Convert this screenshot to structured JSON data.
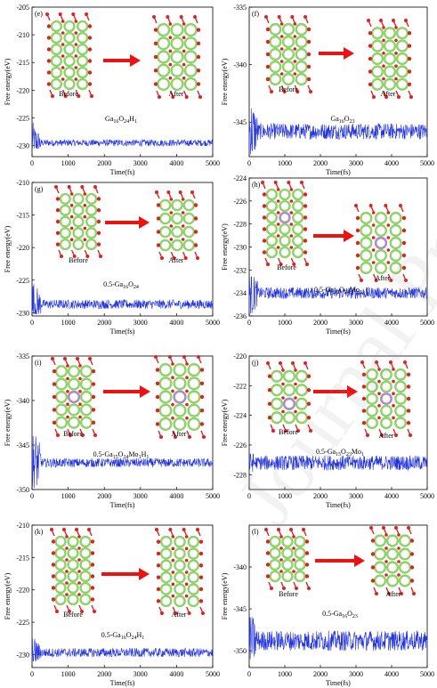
{
  "figure": {
    "watermark": "Journal Pre-proof"
  },
  "chart_data": [
    {
      "type": "line",
      "panel": "(e)",
      "series_label": "Ga16O24H1",
      "title_parts": [
        [
          "Ga",
          ""
        ],
        [
          "16",
          "sub"
        ],
        [
          "O",
          ""
        ],
        [
          "24",
          "sub"
        ],
        [
          "H",
          ""
        ],
        [
          "1",
          "sub"
        ]
      ],
      "ylabel": "Free energy(eV)",
      "xlabel": "Time(fs)",
      "xlim": [
        0,
        5000
      ],
      "ylim": [
        -232,
        -205
      ],
      "yticks": [
        -205,
        -210,
        -215,
        -220,
        -225,
        -230
      ],
      "xticks": [
        0,
        1000,
        2000,
        3000,
        4000,
        5000
      ],
      "baseline": -229.5,
      "amplitude": 0.6,
      "initial_min": -230.5,
      "initial_max": -225.5,
      "before_label": "Before",
      "after_label": "After"
    },
    {
      "type": "line",
      "panel": "(f)",
      "series_label": "Ga16O23",
      "title_parts": [
        [
          "Ga",
          ""
        ],
        [
          "16",
          "sub"
        ],
        [
          "O",
          ""
        ],
        [
          "23",
          "sub"
        ]
      ],
      "ylabel": "Free energy(eV)",
      "xlabel": "Time(fs)",
      "xlim": [
        0,
        5000
      ],
      "ylim": [
        -348,
        -335
      ],
      "yticks": [
        -335,
        -340,
        -345
      ],
      "xticks": [
        0,
        1000,
        2000,
        3000,
        4000,
        5000
      ],
      "baseline": -345.8,
      "amplitude": 0.7,
      "initial_min": -347.8,
      "initial_max": -343.5,
      "before_label": "Before",
      "after_label": "After"
    },
    {
      "type": "line",
      "panel": "(g)",
      "series_label": "0.5-Ga16O24",
      "title_parts": [
        [
          "0.5-Ga",
          ""
        ],
        [
          "16",
          "sub"
        ],
        [
          "O",
          ""
        ],
        [
          "24",
          "sub"
        ]
      ],
      "ylabel": "Free energy(eV)",
      "xlabel": "Time(fs)",
      "xlim": [
        0,
        5000
      ],
      "ylim": [
        -230.5,
        -210
      ],
      "yticks": [
        -210,
        -215,
        -220,
        -225,
        -230
      ],
      "xticks": [
        0,
        1000,
        2000,
        3000,
        4000,
        5000
      ],
      "baseline": -228.7,
      "amplitude": 0.7,
      "initial_min": -230.2,
      "initial_max": -225.0,
      "before_label": "Before",
      "after_label": "After"
    },
    {
      "type": "line",
      "panel": "(h)",
      "series_label": "0.5-Ga15O24Mo1",
      "title_parts": [
        [
          "0.5-Ga",
          ""
        ],
        [
          "15",
          "sub"
        ],
        [
          "O",
          ""
        ],
        [
          "24",
          "sub"
        ],
        [
          "Mo",
          ""
        ],
        [
          "1",
          "sub"
        ]
      ],
      "ylabel": "Free energy(eV)",
      "xlabel": "Time(fs)",
      "xlim": [
        0,
        5000
      ],
      "ylim": [
        -236,
        -224
      ],
      "yticks": [
        -224,
        -226,
        -228,
        -230,
        -232,
        -234,
        -236
      ],
      "xticks": [
        0,
        1000,
        2000,
        3000,
        4000,
        5000
      ],
      "baseline": -234.0,
      "amplitude": 0.5,
      "initial_min": -235.8,
      "initial_max": -232.6,
      "before_label": "Before",
      "after_label": "After"
    },
    {
      "type": "line",
      "panel": "(i)",
      "series_label": "0.5-Ga15O24Mo1H1",
      "title_parts": [
        [
          "0.5-Ga",
          ""
        ],
        [
          "15",
          "sub"
        ],
        [
          "O",
          ""
        ],
        [
          "24",
          "sub"
        ],
        [
          "Mo",
          ""
        ],
        [
          "1",
          "sub"
        ],
        [
          "H",
          ""
        ],
        [
          "1",
          "sub"
        ]
      ],
      "ylabel": "Free energy(eV)",
      "xlabel": "Time(fs)",
      "xlim": [
        0,
        5000
      ],
      "ylim": [
        -350,
        -335
      ],
      "yticks": [
        -335,
        -340,
        -345,
        -350
      ],
      "xticks": [
        0,
        1000,
        2000,
        3000,
        4000,
        5000
      ],
      "baseline": -347.0,
      "amplitude": 0.5,
      "initial_min": -349.8,
      "initial_max": -344.0,
      "before_label": "Before",
      "after_label": "After"
    },
    {
      "type": "line",
      "panel": "(j)",
      "series_label": "0.5-Ga15O23Mo1",
      "title_parts": [
        [
          "0.5-Ga",
          ""
        ],
        [
          "15",
          "sub"
        ],
        [
          "O",
          ""
        ],
        [
          "23",
          "sub"
        ],
        [
          "Mo",
          ""
        ],
        [
          "1",
          "sub"
        ]
      ],
      "ylabel": "Free energy(eV)",
      "xlabel": "Time(fs)",
      "xlim": [
        0,
        5000
      ],
      "ylim": [
        -229,
        -220
      ],
      "yticks": [
        -220,
        -222,
        -224,
        -226,
        -228
      ],
      "xticks": [
        0,
        1000,
        2000,
        3000,
        4000,
        5000
      ],
      "baseline": -227.2,
      "amplitude": 0.5,
      "initial_min": -227.8,
      "initial_max": -226.6,
      "before_label": "Before",
      "after_label": "After"
    },
    {
      "type": "line",
      "panel": "(k)",
      "series_label": "0.5-Ga16O24H1",
      "title_parts": [
        [
          "0.5-Ga",
          ""
        ],
        [
          "16",
          "sub"
        ],
        [
          "O",
          ""
        ],
        [
          "24",
          "sub"
        ],
        [
          "H",
          ""
        ],
        [
          "1",
          "sub"
        ]
      ],
      "ylabel": "Free energy(eV)",
      "xlabel": "Time(fs)",
      "xlim": [
        0,
        5000
      ],
      "ylim": [
        -232,
        -210
      ],
      "yticks": [
        -210,
        -215,
        -220,
        -225,
        -230
      ],
      "xticks": [
        0,
        1000,
        2000,
        3000,
        4000,
        5000
      ],
      "baseline": -229.7,
      "amplitude": 0.7,
      "initial_min": -231.0,
      "initial_max": -227.5,
      "before_label": "Before",
      "after_label": "After"
    },
    {
      "type": "line",
      "panel": "(l)",
      "series_label": "0.5-Ga16O23",
      "title_parts": [
        [
          "0.5-Ga",
          ""
        ],
        [
          "16",
          "sub"
        ],
        [
          "O",
          ""
        ],
        [
          "23",
          "sub"
        ]
      ],
      "ylabel": "Free energy(eV)",
      "xlabel": "Time(fs)",
      "xlim": [
        0,
        5000
      ],
      "ylim": [
        -352,
        -335
      ],
      "yticks": [
        -340,
        -345,
        -350
      ],
      "xticks": [
        0,
        1000,
        2000,
        3000,
        4000,
        5000
      ],
      "baseline": -348.8,
      "amplitude": 1.2,
      "initial_min": -351.0,
      "initial_max": -346.0,
      "before_label": "Before",
      "after_label": "After"
    }
  ],
  "colors": {
    "line": "#2233dd",
    "arrow": "#ee1111",
    "ga_atom": "#8fd16a",
    "o_atom": "#dd2222",
    "mo_atom": "#b388cc",
    "h_atom": "#f2f2f2"
  }
}
